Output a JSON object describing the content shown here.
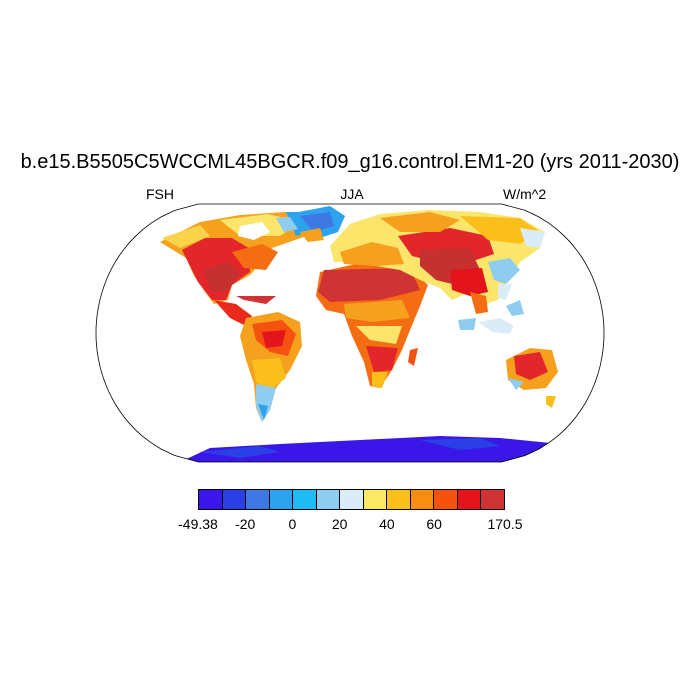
{
  "title": "b.e15.B5505C5WCCML45BGCR.f09_g16.control.EM1-20 (yrs 2011-2030)",
  "left_label": "FSH",
  "center_label": "JJA",
  "right_label": "W/m^2",
  "colorbar": {
    "colors": [
      "#3a17e8",
      "#2b3fe6",
      "#3d78e3",
      "#2da2ee",
      "#1fbbf7",
      "#8ecdef",
      "#d9ecf7",
      "#fbe966",
      "#fbbf1c",
      "#f88e10",
      "#f4520e",
      "#e3141b",
      "#cf3333"
    ],
    "tick_labels": [
      "-49.38",
      "-20",
      "0",
      "20",
      "40",
      "60",
      "170.5"
    ]
  }
}
